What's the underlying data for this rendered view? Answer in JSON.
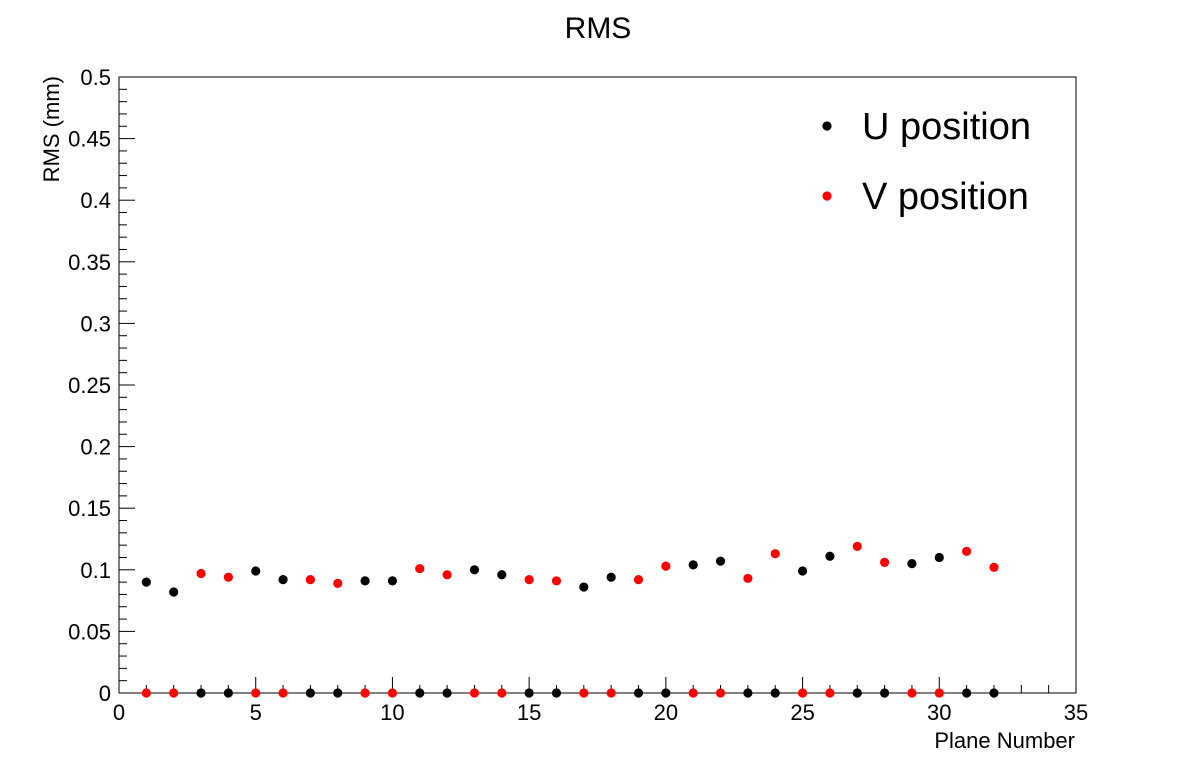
{
  "chart_data": {
    "type": "scatter",
    "title": "RMS",
    "xlabel": "Plane Number",
    "ylabel": "RMS (mm)",
    "xlim": [
      0,
      35
    ],
    "ylim": [
      0,
      0.5
    ],
    "x_ticks": [
      "0",
      "5",
      "10",
      "15",
      "20",
      "25",
      "30",
      "35"
    ],
    "y_ticks": [
      "0",
      "0.05",
      "0.1",
      "0.15",
      "0.2",
      "0.25",
      "0.3",
      "0.35",
      "0.4",
      "0.45",
      "0.5"
    ],
    "legend_position": "top-right",
    "grid": false,
    "series": [
      {
        "name": "U position",
        "color": "#000000",
        "points": [
          [
            1,
            0.09
          ],
          [
            2,
            0.082
          ],
          [
            5,
            0.099
          ],
          [
            6,
            0.092
          ],
          [
            9,
            0.091
          ],
          [
            10,
            0.091
          ],
          [
            13,
            0.1
          ],
          [
            14,
            0.096
          ],
          [
            17,
            0.086
          ],
          [
            18,
            0.094
          ],
          [
            21,
            0.104
          ],
          [
            22,
            0.107
          ],
          [
            25,
            0.099
          ],
          [
            26,
            0.111
          ],
          [
            29,
            0.105
          ],
          [
            30,
            0.11
          ],
          [
            3,
            0
          ],
          [
            4,
            0
          ],
          [
            7,
            0
          ],
          [
            8,
            0
          ],
          [
            11,
            0
          ],
          [
            12,
            0
          ],
          [
            15,
            0
          ],
          [
            16,
            0
          ],
          [
            19,
            0
          ],
          [
            20,
            0
          ],
          [
            23,
            0
          ],
          [
            24,
            0
          ],
          [
            27,
            0
          ],
          [
            28,
            0
          ],
          [
            31,
            0
          ],
          [
            32,
            0
          ]
        ]
      },
      {
        "name": "V position",
        "color": "#ff0000",
        "points": [
          [
            3,
            0.097
          ],
          [
            4,
            0.094
          ],
          [
            7,
            0.092
          ],
          [
            8,
            0.089
          ],
          [
            11,
            0.101
          ],
          [
            12,
            0.096
          ],
          [
            15,
            0.092
          ],
          [
            16,
            0.091
          ],
          [
            19,
            0.092
          ],
          [
            20,
            0.103
          ],
          [
            23,
            0.093
          ],
          [
            24,
            0.113
          ],
          [
            27,
            0.119
          ],
          [
            28,
            0.106
          ],
          [
            31,
            0.115
          ],
          [
            32,
            0.102
          ],
          [
            1,
            0
          ],
          [
            2,
            0
          ],
          [
            5,
            0
          ],
          [
            6,
            0
          ],
          [
            9,
            0
          ],
          [
            10,
            0
          ],
          [
            13,
            0
          ],
          [
            14,
            0
          ],
          [
            17,
            0
          ],
          [
            18,
            0
          ],
          [
            21,
            0
          ],
          [
            22,
            0
          ],
          [
            25,
            0
          ],
          [
            26,
            0
          ],
          [
            29,
            0
          ],
          [
            30,
            0
          ]
        ]
      }
    ]
  }
}
